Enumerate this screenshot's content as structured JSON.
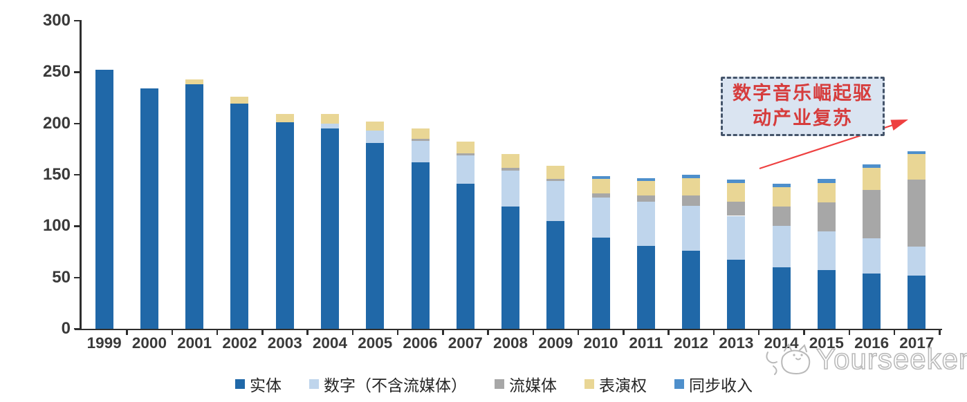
{
  "chart_data": {
    "type": "bar",
    "stacked": true,
    "title": "",
    "categories": [
      "1999",
      "2000",
      "2001",
      "2002",
      "2003",
      "2004",
      "2005",
      "2006",
      "2007",
      "2008",
      "2009",
      "2010",
      "2011",
      "2012",
      "2013",
      "2014",
      "2015",
      "2016",
      "2017"
    ],
    "series": [
      {
        "id": "physical",
        "name": "实体",
        "color": "#2068A8",
        "values": [
          252,
          234,
          238,
          219,
          201,
          195,
          181,
          162,
          141,
          119,
          105,
          89,
          81,
          76,
          67,
          60,
          57,
          54,
          52
        ]
      },
      {
        "id": "digital-excl-streaming",
        "name": "数字（不含流媒体）",
        "color": "#BFD5EC",
        "values": [
          0,
          0,
          0,
          0,
          0,
          5,
          12,
          21,
          28,
          35,
          39,
          39,
          43,
          44,
          43,
          40,
          38,
          34,
          28
        ]
      },
      {
        "id": "streaming",
        "name": "流媒体",
        "color": "#A7A7A7",
        "values": [
          0,
          0,
          0,
          0,
          0,
          0,
          0,
          2,
          2,
          3,
          2,
          4,
          6,
          10,
          14,
          19,
          28,
          47,
          65
        ]
      },
      {
        "id": "performance-rights",
        "name": "表演权",
        "color": "#E9D695",
        "values": [
          0,
          0,
          5,
          7,
          8,
          9,
          9,
          10,
          11,
          13,
          13,
          14,
          14,
          17,
          18,
          19,
          19,
          22,
          25
        ]
      },
      {
        "id": "sync-revenue",
        "name": "同步收入",
        "color": "#4E8FCB",
        "values": [
          0,
          0,
          0,
          0,
          0,
          0,
          0,
          0,
          0,
          0,
          0,
          3,
          3,
          3,
          3,
          3,
          4,
          3,
          3
        ]
      }
    ],
    "ylim": [
      0,
      300
    ],
    "yticks": [
      "0",
      "50",
      "100",
      "150",
      "200",
      "250",
      "300"
    ],
    "grid": false,
    "legend_position": "bottom"
  },
  "annotation": {
    "line1": "数字音乐崛起驱",
    "line2": "动产业复苏",
    "box_fill": "#dae4f1",
    "border_color": "#44546a",
    "text_color": "#d63c3c",
    "arrow_color": "#ee4040"
  },
  "watermark": {
    "text": "Yourseeker"
  }
}
